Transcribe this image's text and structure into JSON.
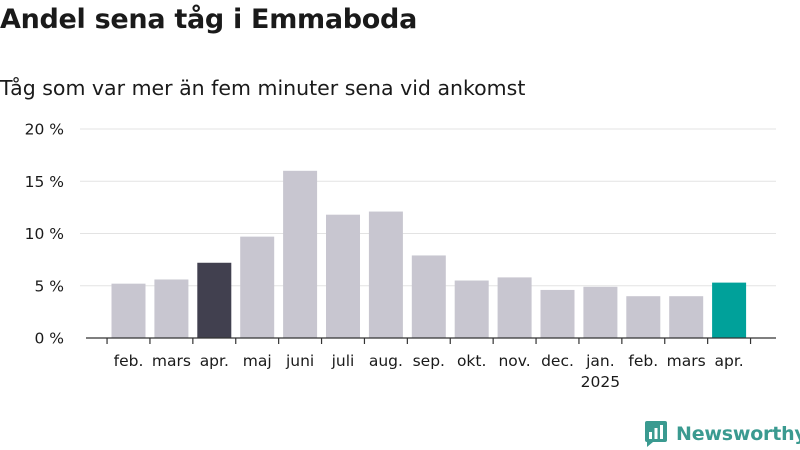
{
  "title": "Andel sena tåg i Emmaboda",
  "subtitle": "Tåg som var mer än fem minuter sena vid ankomst",
  "brand": {
    "name": "Newsworthy",
    "color": "#3a9a90",
    "icon": "newsworthy-logo-icon"
  },
  "colors": {
    "default": "#c8c6d0",
    "highlight_previous": "#41404f",
    "highlight_current": "#00a19a",
    "grid": "#e3e3e3",
    "axis": "#333333"
  },
  "chart_data": {
    "type": "bar",
    "title": "Andel sena tåg i Emmaboda",
    "subtitle": "Tåg som var mer än fem minuter sena vid ankomst",
    "categories": [
      "feb.",
      "mars",
      "apr.",
      "maj",
      "juni",
      "juli",
      "aug.",
      "sep.",
      "okt.",
      "nov.",
      "dec.",
      "jan.",
      "feb.",
      "mars",
      "apr."
    ],
    "year_labels": [
      {
        "category_index": 11,
        "label": "2025"
      }
    ],
    "values": [
      5.2,
      5.6,
      7.2,
      9.7,
      16.0,
      11.8,
      12.1,
      7.9,
      5.5,
      5.8,
      4.6,
      4.9,
      4.0,
      4.0,
      5.3
    ],
    "highlight": {
      "2": "highlight_previous",
      "14": "highlight_current"
    },
    "ylim": [
      0,
      20
    ],
    "yticks": [
      0,
      5,
      10,
      15,
      20
    ],
    "ytick_labels": [
      "0 %",
      "5 %",
      "10 %",
      "15 %",
      "20 %"
    ],
    "xlabel": "",
    "ylabel": "",
    "grid": true,
    "legend": "none"
  }
}
